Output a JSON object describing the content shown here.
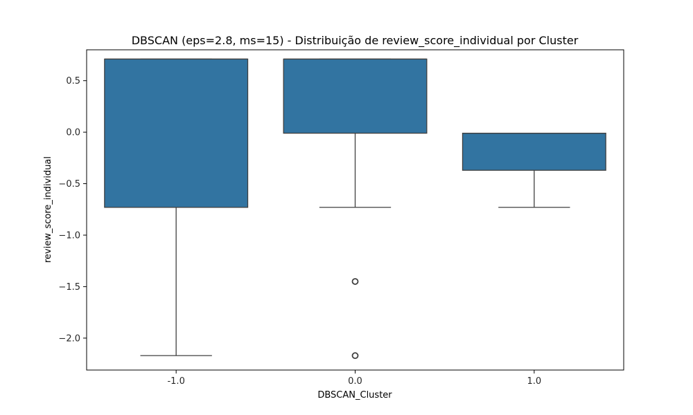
{
  "chart_data": {
    "type": "box",
    "title": "DBSCAN (eps=2.8, ms=15)  - Distribuição de review_score_individual por Cluster",
    "xlabel": "DBSCAN_Cluster",
    "ylabel": "review_score_individual",
    "categories": [
      "-1.0",
      "0.0",
      "1.0"
    ],
    "ylim": [
      -2.31,
      0.8
    ],
    "yticks": [
      {
        "value": 0.5,
        "label": "0.5"
      },
      {
        "value": 0.0,
        "label": "0.0"
      },
      {
        "value": -0.5,
        "label": "−0.5"
      },
      {
        "value": -1.0,
        "label": "−1.0"
      },
      {
        "value": -1.5,
        "label": "−1.5"
      },
      {
        "value": -2.0,
        "label": "−2.0"
      }
    ],
    "boxes": [
      {
        "category": "-1.0",
        "whisker_low": -2.17,
        "q1": -0.73,
        "median": 0.71,
        "q3": 0.71,
        "whisker_high": 0.71,
        "outliers": []
      },
      {
        "category": "0.0",
        "whisker_low": -0.73,
        "q1": -0.01,
        "median": 0.71,
        "q3": 0.71,
        "whisker_high": 0.71,
        "outliers": [
          -1.45,
          -2.17
        ]
      },
      {
        "category": "1.0",
        "whisker_low": -0.73,
        "q1": -0.37,
        "median": -0.01,
        "q3": -0.01,
        "whisker_high": -0.01,
        "outliers": []
      }
    ],
    "grid": false,
    "legend": "none",
    "colors": {
      "box_fill": "#3274a1",
      "line": "#3f3f3f",
      "axis": "#000000"
    }
  }
}
